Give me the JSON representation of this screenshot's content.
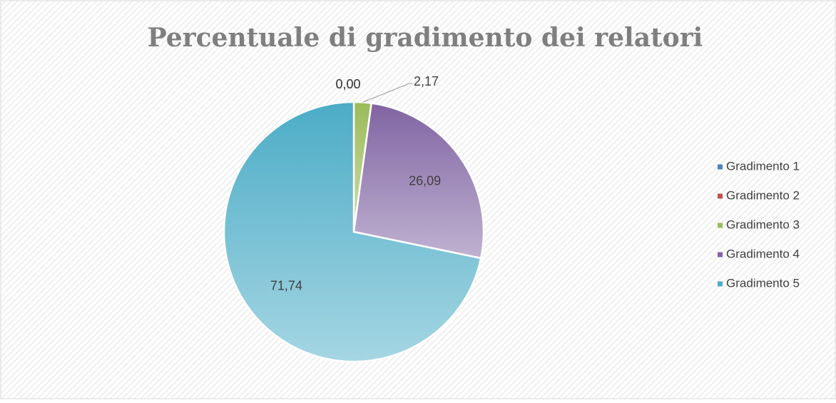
{
  "chart_data": {
    "type": "pie",
    "title": "Percentuale di gradimento dei relatori",
    "categories": [
      "Gradimento  1",
      "Gradimento  2",
      "Gradimento  3",
      "Gradimento  4",
      "Gradimento  5"
    ],
    "values": [
      0,
      0,
      2.17,
      26.09,
      71.74
    ],
    "value_labels": [
      "0,00",
      "0,00",
      "2,17",
      "26,09",
      "71,74"
    ],
    "colors": [
      "#4f81bd",
      "#c0504d",
      "#9bbb59",
      "#8064a2",
      "#4bacc6"
    ],
    "legend": "right"
  }
}
